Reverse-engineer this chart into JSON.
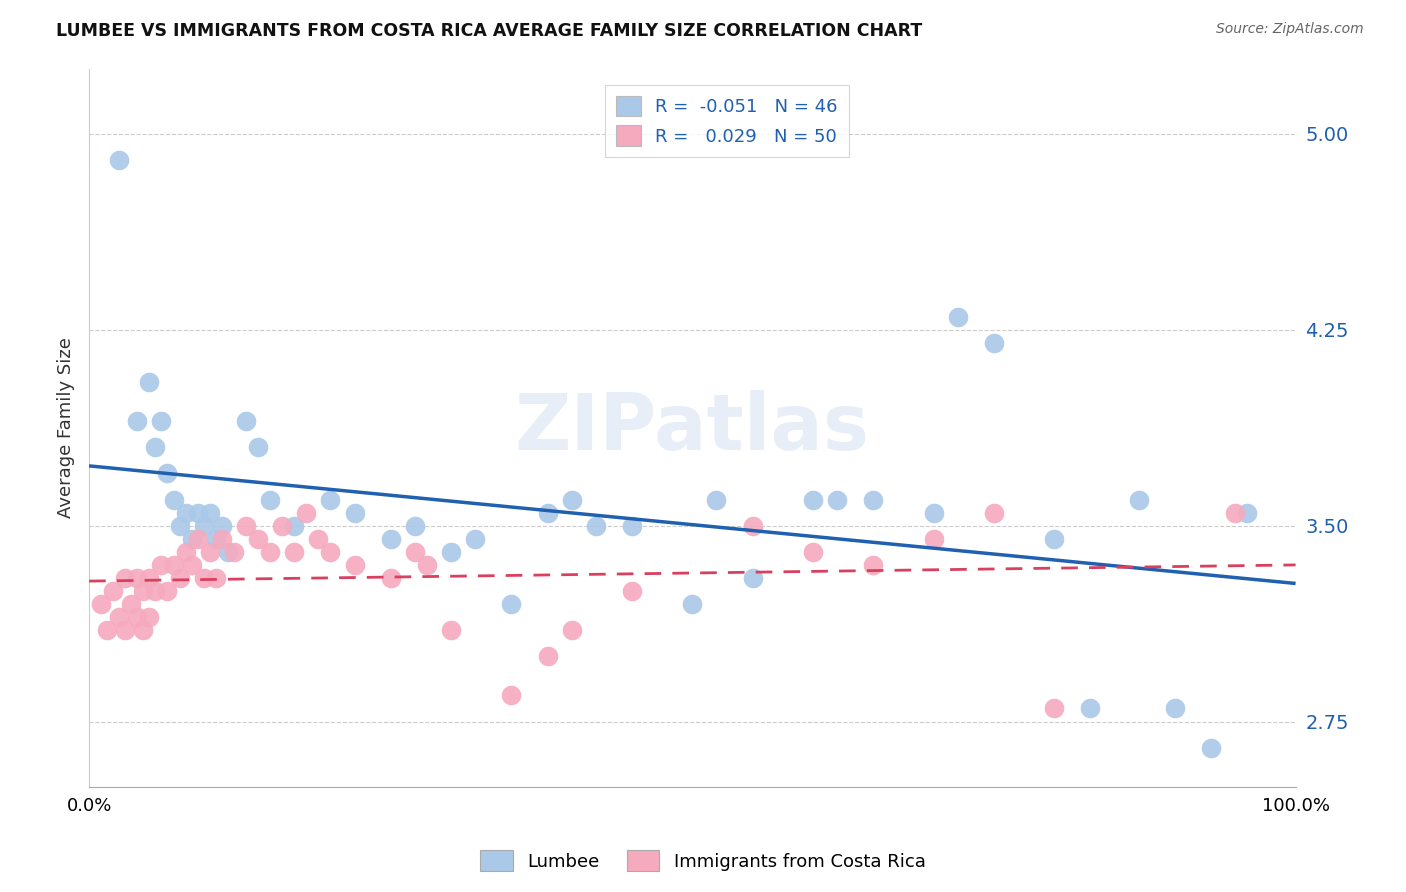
{
  "title": "LUMBEE VS IMMIGRANTS FROM COSTA RICA AVERAGE FAMILY SIZE CORRELATION CHART",
  "source": "Source: ZipAtlas.com",
  "ylabel": "Average Family Size",
  "xlabel": "",
  "watermark": "ZIPatlas",
  "xmin": 0.0,
  "xmax": 1.0,
  "ymin": 2.5,
  "ymax": 5.25,
  "yticks": [
    2.75,
    3.5,
    4.25,
    5.0
  ],
  "xticks": [
    0.0,
    1.0
  ],
  "xtick_labels": [
    "0.0%",
    "100.0%"
  ],
  "legend_r1": "R = -0.051",
  "legend_n1": "N = 46",
  "legend_r2": "R =  0.029",
  "legend_n2": "N = 50",
  "lumbee_color": "#aac8e8",
  "costa_rica_color": "#f5aabe",
  "lumbee_line_color": "#2060b0",
  "costa_rica_line_color": "#d94060",
  "grid_color": "#cccccc",
  "background_color": "#ffffff",
  "lumbee_x": [
    0.025,
    0.04,
    0.05,
    0.055,
    0.06,
    0.065,
    0.07,
    0.075,
    0.08,
    0.085,
    0.09,
    0.095,
    0.1,
    0.105,
    0.11,
    0.115,
    0.13,
    0.14,
    0.15,
    0.17,
    0.2,
    0.22,
    0.25,
    0.27,
    0.3,
    0.32,
    0.35,
    0.38,
    0.4,
    0.42,
    0.45,
    0.5,
    0.52,
    0.55,
    0.6,
    0.62,
    0.65,
    0.7,
    0.72,
    0.75,
    0.8,
    0.83,
    0.87,
    0.9,
    0.93,
    0.96
  ],
  "lumbee_y": [
    4.9,
    3.9,
    4.05,
    3.8,
    3.9,
    3.7,
    3.6,
    3.5,
    3.55,
    3.45,
    3.55,
    3.5,
    3.55,
    3.45,
    3.5,
    3.4,
    3.9,
    3.8,
    3.6,
    3.5,
    3.6,
    3.55,
    3.45,
    3.5,
    3.4,
    3.45,
    3.2,
    3.55,
    3.6,
    3.5,
    3.5,
    3.2,
    3.6,
    3.3,
    3.6,
    3.6,
    3.6,
    3.55,
    4.3,
    4.2,
    3.45,
    2.8,
    3.6,
    2.8,
    2.65,
    3.55
  ],
  "costa_rica_x": [
    0.01,
    0.015,
    0.02,
    0.025,
    0.03,
    0.03,
    0.035,
    0.04,
    0.04,
    0.045,
    0.045,
    0.05,
    0.05,
    0.055,
    0.06,
    0.065,
    0.07,
    0.075,
    0.08,
    0.085,
    0.09,
    0.095,
    0.1,
    0.105,
    0.11,
    0.12,
    0.13,
    0.14,
    0.15,
    0.16,
    0.17,
    0.18,
    0.19,
    0.2,
    0.22,
    0.25,
    0.27,
    0.28,
    0.3,
    0.35,
    0.38,
    0.4,
    0.45,
    0.55,
    0.6,
    0.65,
    0.7,
    0.75,
    0.8,
    0.95
  ],
  "costa_rica_y": [
    3.2,
    3.1,
    3.25,
    3.15,
    3.3,
    3.1,
    3.2,
    3.3,
    3.15,
    3.25,
    3.1,
    3.3,
    3.15,
    3.25,
    3.35,
    3.25,
    3.35,
    3.3,
    3.4,
    3.35,
    3.45,
    3.3,
    3.4,
    3.3,
    3.45,
    3.4,
    3.5,
    3.45,
    3.4,
    3.5,
    3.4,
    3.55,
    3.45,
    3.4,
    3.35,
    3.3,
    3.4,
    3.35,
    3.1,
    2.85,
    3.0,
    3.1,
    3.25,
    3.5,
    3.4,
    3.35,
    3.45,
    3.55,
    2.8,
    3.55
  ]
}
